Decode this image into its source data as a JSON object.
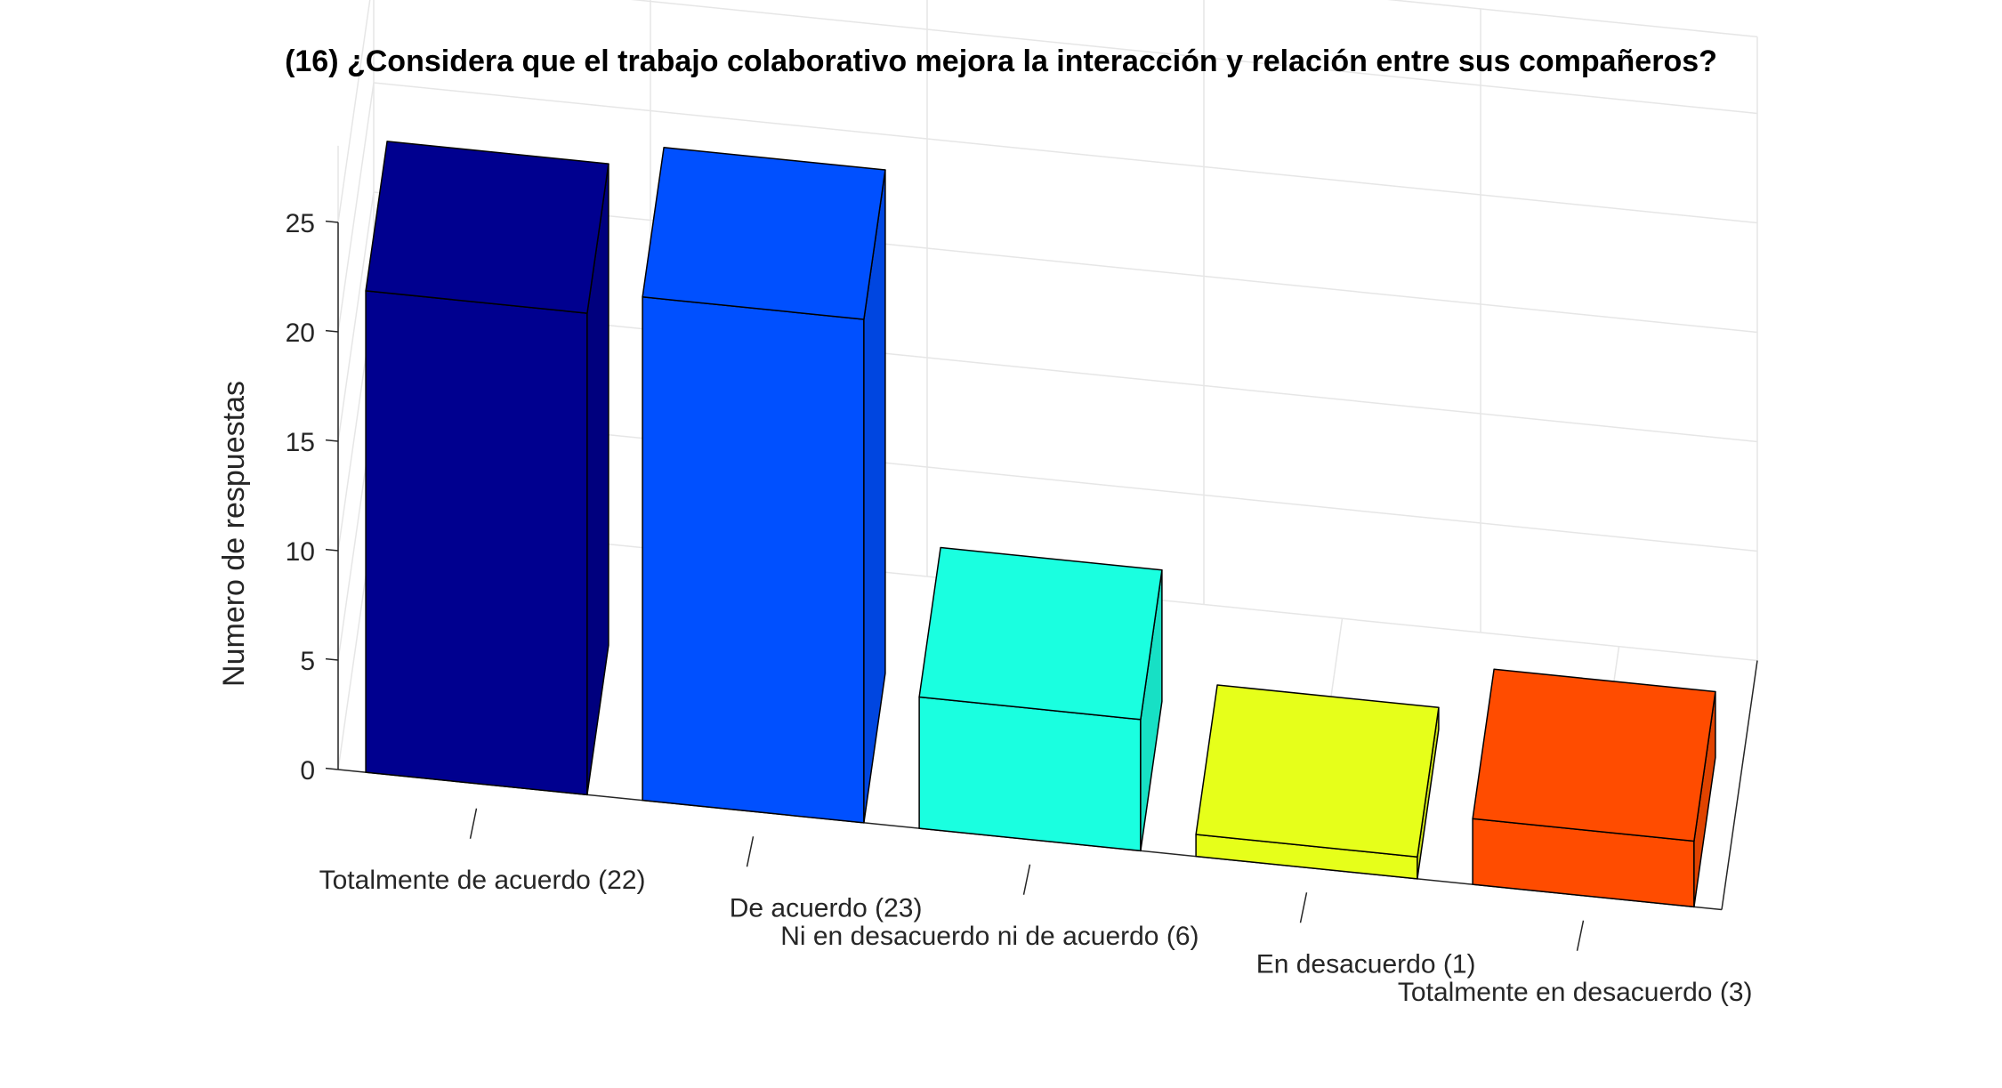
{
  "chart_data": {
    "type": "bar",
    "title": "(16) ¿Considera que el trabajo colaborativo mejora la interacción y relación entre sus compañeros?",
    "xlabel": "",
    "ylabel": "Numero de respuestas",
    "categories": [
      "Totalmente de acuerdo (22)",
      "De acuerdo (23)",
      "Ni en desacuerdo ni de acuerdo (6)",
      "En desacuerdo (1)",
      "Totalmente en desacuerdo (3)"
    ],
    "values": [
      22,
      23,
      6,
      1,
      3
    ],
    "colors": [
      "#00008f",
      "#0050ff",
      "#1affe0",
      "#e6ff1a",
      "#ff4c00"
    ],
    "yticks": [
      "0",
      "5",
      "10",
      "15",
      "20",
      "25"
    ],
    "ylim": [
      0,
      25
    ],
    "grid": true,
    "projection": "3d-bar"
  }
}
